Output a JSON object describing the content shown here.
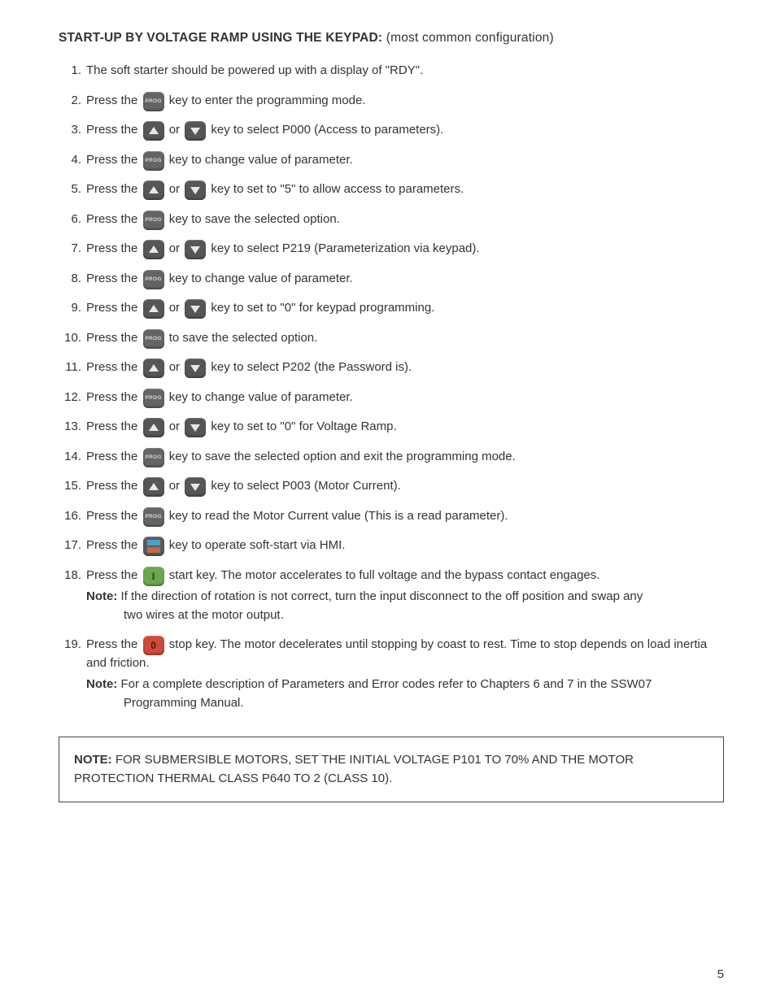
{
  "heading_bold": "START-UP BY VOLTAGE RAMP USING THE KEYPAD:",
  "heading_sub": " (most common configuration)",
  "prog_label": "PROG",
  "steps": {
    "s1": "The soft starter should be powered up with a display of \"RDY\".",
    "s2a": "Press the ",
    "s2b": " key to enter the programming mode.",
    "s3a": "Press the ",
    "s3b": " or ",
    "s3c": " key to select P000 (Access to parameters).",
    "s4a": "Press the ",
    "s4b": " key to change value of parameter.",
    "s5a": "Press the ",
    "s5b": " or ",
    "s5c": " key to set to \"5\" to allow access to parameters.",
    "s6a": "Press the ",
    "s6b": " key to save the selected option.",
    "s7a": "Press the ",
    "s7b": " or ",
    "s7c": " key to select P219 (Parameterization via keypad).",
    "s8a": "Press the ",
    "s8b": " key to change value of parameter.",
    "s9a": "Press the ",
    "s9b": " or ",
    "s9c": " key to set to \"0\" for keypad programming.",
    "s10a": "Press the ",
    "s10b": " to save the selected option.",
    "s11a": "Press the ",
    "s11b": " or ",
    "s11c": " key to select P202 (the Password is).",
    "s12a": "Press the ",
    "s12b": " key to change value of parameter.",
    "s13a": "Press the ",
    "s13b": " or ",
    "s13c": " key to set to \"0\" for Voltage Ramp.",
    "s14a": "Press the ",
    "s14b": " key to save the selected option and exit the programming mode.",
    "s15a": "Press the ",
    "s15b": " or ",
    "s15c": " key to select P003 (Motor Current).",
    "s16a": "Press the ",
    "s16b": " key to read the Motor Current value (This is a read parameter).",
    "s17a": "Press the ",
    "s17b": " key to operate soft-start via HMI.",
    "s18a": "Press the ",
    "s18b": " start key. The motor accelerates to full voltage and the bypass contact engages.",
    "s18_note_label": "Note:",
    "s18_note_a": " If the direction of rotation is not correct, turn the input disconnect to the off position and swap any",
    "s18_note_b": "two wires at the motor output.",
    "s19a": "Press the ",
    "s19b": " stop key. The motor decelerates until stopping by coast to rest. Time to stop depends on load inertia and friction.",
    "s19_note_label": "Note:",
    "s19_note_a": " For a complete description of Parameters and Error codes refer to Chapters 6 and 7 in the SSW07",
    "s19_note_b": "Programming Manual."
  },
  "note_box_label": "NOTE:",
  "note_box_text": " FOR SUBMERSIBLE MOTORS, SET THE INITIAL VOLTAGE P101 TO 70% AND THE MOTOR PROTECTION THERMAL CLASS P640 TO 2 (CLASS 10).",
  "page_number": "5"
}
